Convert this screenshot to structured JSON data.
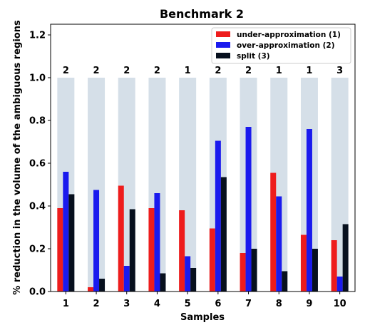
{
  "chart_data": {
    "type": "bar",
    "title": "Benchmark 2",
    "xlabel": "Samples",
    "ylabel": "% reduction in the volume of the ambiguous regions",
    "categories": [
      "1",
      "2",
      "3",
      "4",
      "5",
      "6",
      "7",
      "8",
      "9",
      "10"
    ],
    "ylim": [
      0,
      1.25
    ],
    "yticks": [
      "0.0",
      "0.2",
      "0.4",
      "0.6",
      "0.8",
      "1.0",
      "1.2"
    ],
    "background_values": [
      1.0,
      1.0,
      1.0,
      1.0,
      1.0,
      1.0,
      1.0,
      1.0,
      1.0,
      1.0
    ],
    "background_color": "#d5dfe8",
    "top_labels": [
      "2",
      "2",
      "2",
      "2",
      "1",
      "2",
      "2",
      "1",
      "1",
      "3"
    ],
    "series": [
      {
        "name": "under-approximation (1)",
        "color": "#ee1c1c",
        "values": [
          0.39,
          0.02,
          0.495,
          0.39,
          0.38,
          0.295,
          0.18,
          0.555,
          0.265,
          0.24
        ]
      },
      {
        "name": "over-approximation (2)",
        "color": "#1a1aee",
        "values": [
          0.56,
          0.475,
          0.12,
          0.46,
          0.165,
          0.705,
          0.77,
          0.445,
          0.76,
          0.07
        ]
      },
      {
        "name": "split (3)",
        "color": "#07101e",
        "values": [
          0.455,
          0.06,
          0.385,
          0.085,
          0.11,
          0.535,
          0.2,
          0.095,
          0.2,
          0.315
        ]
      }
    ],
    "grid": false,
    "legend_position": "top-right"
  }
}
